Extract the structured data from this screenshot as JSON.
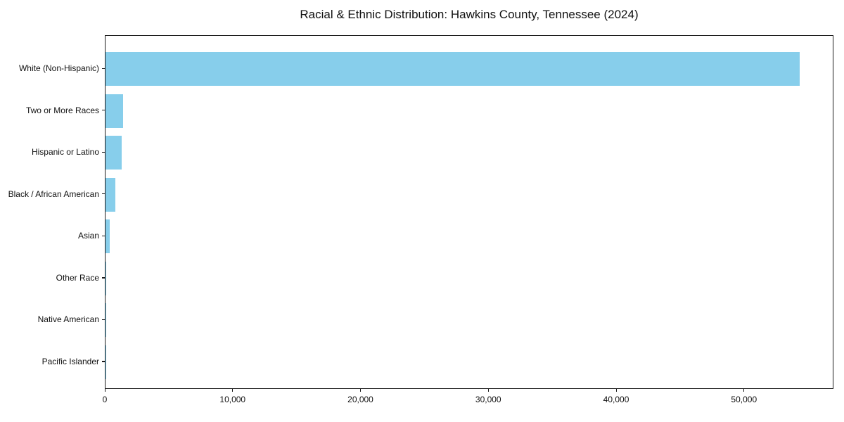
{
  "chart_data": {
    "type": "bar",
    "orientation": "horizontal",
    "title": "Racial & Ethnic Distribution: Hawkins County, Tennessee (2024)",
    "categories": [
      "White (Non-Hispanic)",
      "Two or More Races",
      "Hispanic or Latino",
      "Black / African American",
      "Asian",
      "Other Race",
      "Native American",
      "Pacific Islander"
    ],
    "values": [
      54300,
      1400,
      1250,
      750,
      320,
      80,
      40,
      15
    ],
    "bar_color": "#87CEEB",
    "xlabel": "",
    "ylabel": "",
    "xlim": [
      0,
      57000
    ],
    "x_ticks": [
      0,
      10000,
      20000,
      30000,
      40000,
      50000
    ],
    "x_tick_labels": [
      "0",
      "10,000",
      "20,000",
      "30,000",
      "40,000",
      "50,000"
    ],
    "grid": false,
    "legend": null,
    "value_labels_shown": false
  }
}
